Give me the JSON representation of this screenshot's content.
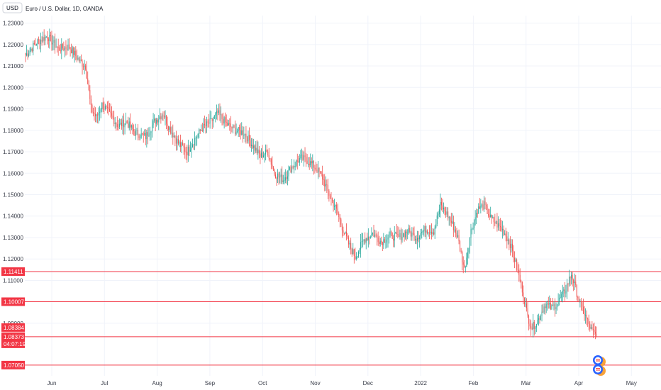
{
  "header": {
    "currency_button": "USD",
    "symbol_title": "Euro / U.S. Dollar, 1D, OANDA"
  },
  "colors": {
    "up": "#26a69a",
    "down": "#ef5350",
    "level_line": "#f23645",
    "grid": "#f0f3fa",
    "text": "#3a3e4a"
  },
  "chart_data": {
    "type": "candlestick",
    "title": "Euro / U.S. Dollar, 1D, OANDA",
    "currency": "USD",
    "x_labels": [
      "Jun",
      "Jul",
      "Aug",
      "Sep",
      "Oct",
      "Nov",
      "Dec",
      "2022",
      "Feb",
      "Mar",
      "Apr",
      "May"
    ],
    "y_ticks": [
      "1.23000",
      "1.22000",
      "1.21000",
      "1.20000",
      "1.19000",
      "1.18000",
      "1.17000",
      "1.16000",
      "1.15000",
      "1.14000",
      "1.13000",
      "1.12000",
      "1.11000",
      "1.09000"
    ],
    "y_tick_values": [
      1.23,
      1.22,
      1.21,
      1.2,
      1.19,
      1.18,
      1.17,
      1.16,
      1.15,
      1.14,
      1.13,
      1.12,
      1.11,
      1.09
    ],
    "ylim": [
      1.0655,
      1.2335
    ],
    "horizontal_levels": [
      {
        "value": 1.11411,
        "label": "1.11411"
      },
      {
        "value": 1.10007,
        "label": "1.10007"
      },
      {
        "value": 1.08373,
        "label": "1.08373"
      },
      {
        "value": 1.0705,
        "label": "1.07050"
      }
    ],
    "price_tags": [
      {
        "value": 1.08384,
        "label": "1.08384",
        "color": "#f23645"
      },
      {
        "value": 1.08373,
        "label": "1.08373",
        "color": "#f23645",
        "countdown": "04:07:19"
      }
    ],
    "close_path": [
      [
        0,
        1.215
      ],
      [
        10,
        1.221
      ],
      [
        20,
        1.224
      ],
      [
        30,
        1.218
      ],
      [
        40,
        1.219
      ],
      [
        50,
        1.212
      ],
      [
        55,
        1.21
      ],
      [
        60,
        1.19
      ],
      [
        65,
        1.186
      ],
      [
        70,
        1.192
      ],
      [
        78,
        1.187
      ],
      [
        85,
        1.182
      ],
      [
        92,
        1.184
      ],
      [
        100,
        1.179
      ],
      [
        110,
        1.177
      ],
      [
        118,
        1.184
      ],
      [
        126,
        1.188
      ],
      [
        132,
        1.181
      ],
      [
        140,
        1.174
      ],
      [
        148,
        1.17
      ],
      [
        155,
        1.176
      ],
      [
        162,
        1.181
      ],
      [
        170,
        1.184
      ],
      [
        176,
        1.188
      ],
      [
        184,
        1.183
      ],
      [
        192,
        1.18
      ],
      [
        200,
        1.179
      ],
      [
        208,
        1.173
      ],
      [
        215,
        1.168
      ],
      [
        222,
        1.17
      ],
      [
        228,
        1.16
      ],
      [
        236,
        1.157
      ],
      [
        244,
        1.163
      ],
      [
        252,
        1.167
      ],
      [
        258,
        1.166
      ],
      [
        265,
        1.163
      ],
      [
        272,
        1.158
      ],
      [
        278,
        1.15
      ],
      [
        284,
        1.144
      ],
      [
        290,
        1.135
      ],
      [
        296,
        1.127
      ],
      [
        302,
        1.121
      ],
      [
        310,
        1.129
      ],
      [
        318,
        1.132
      ],
      [
        326,
        1.128
      ],
      [
        334,
        1.131
      ],
      [
        342,
        1.13
      ],
      [
        350,
        1.133
      ],
      [
        358,
        1.13
      ],
      [
        366,
        1.134
      ],
      [
        374,
        1.133
      ],
      [
        380,
        1.145
      ],
      [
        386,
        1.141
      ],
      [
        392,
        1.135
      ],
      [
        396,
        1.13
      ],
      [
        402,
        1.115
      ],
      [
        408,
        1.133
      ],
      [
        414,
        1.143
      ],
      [
        420,
        1.145
      ],
      [
        426,
        1.139
      ],
      [
        432,
        1.136
      ],
      [
        438,
        1.133
      ],
      [
        444,
        1.127
      ],
      [
        450,
        1.116
      ],
      [
        455,
        1.106
      ],
      [
        460,
        1.093
      ],
      [
        464,
        1.088
      ],
      [
        470,
        1.092
      ],
      [
        476,
        1.099
      ],
      [
        482,
        1.097
      ],
      [
        488,
        1.1
      ],
      [
        494,
        1.105
      ],
      [
        500,
        1.113
      ],
      [
        504,
        1.106
      ],
      [
        508,
        1.099
      ],
      [
        514,
        1.092
      ],
      [
        518,
        1.087
      ],
      [
        523,
        1.08373
      ]
    ]
  }
}
